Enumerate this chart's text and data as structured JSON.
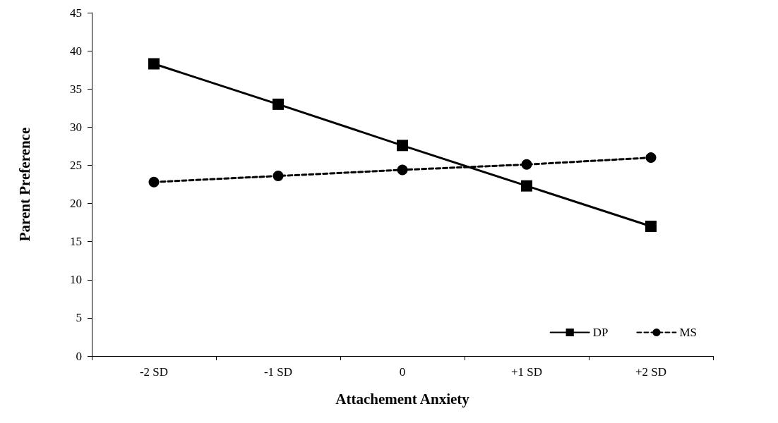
{
  "chart_data": {
    "type": "line",
    "xlabel": "Attachement Anxiety",
    "ylabel": "Parent Preference",
    "categories": [
      "-2 SD",
      "-1 SD",
      "0",
      "+1 SD",
      "+2 SD"
    ],
    "series": [
      {
        "name": "DP",
        "color": "#000000",
        "marker": "square",
        "line_style": "solid",
        "values": [
          38.3,
          33.0,
          27.6,
          22.3,
          17.0
        ]
      },
      {
        "name": "MS",
        "color": "#000000",
        "marker": "circle",
        "line_style": "dashed",
        "values": [
          22.8,
          23.6,
          24.4,
          25.1,
          26.0
        ]
      }
    ],
    "ylim": [
      0,
      45
    ],
    "yticks": [
      0,
      5,
      10,
      15,
      20,
      25,
      30,
      35,
      40,
      45
    ],
    "grid": false,
    "legend": "bottom right"
  }
}
